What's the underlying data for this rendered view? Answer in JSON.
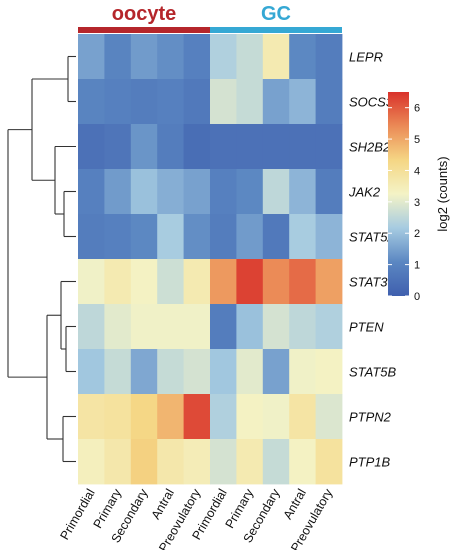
{
  "chart_data": {
    "type": "heatmap",
    "groups": [
      {
        "label": "oocyte",
        "color": "#b5262b",
        "start": 0,
        "end": 5
      },
      {
        "label": "GC",
        "color": "#35a8d4",
        "start": 5,
        "end": 10
      }
    ],
    "columns": [
      "Primordial",
      "Primary",
      "Secondary",
      "Antral",
      "Preovulatory",
      "Primordial",
      "Primary",
      "Secondary",
      "Antral",
      "Preovulatory"
    ],
    "rows": [
      "LEPR",
      "SOCS3",
      "SH2B2",
      "JAK2",
      "STAT5A",
      "STAT3",
      "PTEN",
      "STAT5B",
      "PTPN2",
      "PTP1B"
    ],
    "values": [
      [
        1.5,
        1.0,
        1.4,
        1.2,
        0.9,
        2.3,
        2.6,
        3.6,
        1.1,
        0.8
      ],
      [
        1.0,
        0.9,
        0.8,
        0.9,
        0.7,
        2.8,
        2.6,
        1.5,
        1.8,
        0.8
      ],
      [
        0.5,
        0.6,
        1.3,
        0.8,
        0.4,
        0.5,
        0.5,
        0.5,
        0.5,
        0.5
      ],
      [
        0.9,
        1.4,
        2.0,
        1.7,
        1.5,
        0.9,
        1.1,
        2.5,
        1.8,
        0.8
      ],
      [
        0.8,
        0.9,
        1.1,
        2.2,
        1.2,
        0.8,
        1.4,
        0.7,
        2.2,
        1.8
      ],
      [
        3.2,
        3.6,
        3.3,
        2.7,
        3.6,
        5.2,
        6.3,
        5.4,
        5.8,
        5.1
      ],
      [
        2.5,
        3.0,
        3.2,
        3.2,
        3.2,
        0.8,
        2.0,
        2.8,
        2.5,
        2.3
      ],
      [
        2.1,
        2.6,
        1.6,
        2.6,
        2.8,
        2.1,
        3.0,
        1.5,
        3.2,
        3.3
      ],
      [
        3.8,
        3.9,
        4.3,
        4.8,
        6.2,
        2.3,
        3.3,
        3.2,
        3.8,
        2.9
      ],
      [
        3.4,
        3.7,
        4.4,
        3.7,
        3.5,
        2.8,
        3.6,
        2.6,
        3.3,
        3.9
      ]
    ],
    "colorbar": {
      "title": "log2 (counts)",
      "ticks": [
        0,
        1,
        2,
        3,
        4,
        5,
        6
      ],
      "min": 0,
      "max": 6.5
    },
    "colorscale": [
      "#3f5fae",
      "#5b87c2",
      "#a6cbe1",
      "#f4f3c6",
      "#f5d684",
      "#eb8a56",
      "#d9322b"
    ],
    "dendrogram": "left"
  }
}
